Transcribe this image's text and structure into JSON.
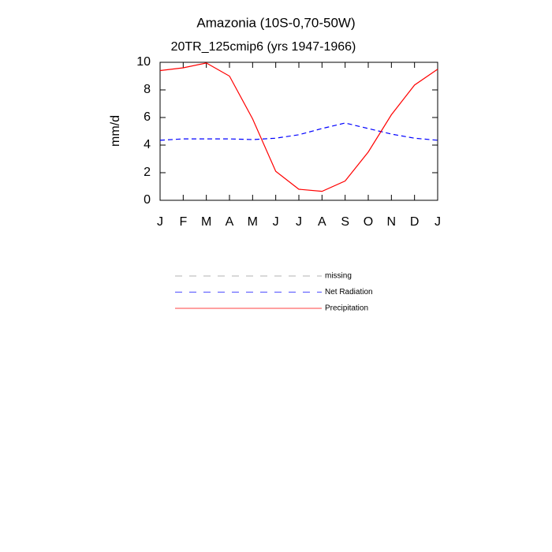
{
  "chart_data": {
    "type": "line",
    "title": "Amazonia (10S-0,70-50W)",
    "subtitle": "20TR_125cmip6 (yrs 1947-1966)",
    "y_label": "mm/d",
    "categories": [
      "J",
      "F",
      "M",
      "A",
      "M",
      "J",
      "J",
      "A",
      "S",
      "O",
      "N",
      "D",
      "J"
    ],
    "series": [
      {
        "name": "missing",
        "color": "#999999",
        "dash": true,
        "values": [
          null,
          null,
          null,
          null,
          null,
          null,
          null,
          null,
          null,
          null,
          null,
          null,
          null
        ]
      },
      {
        "name": "Net Radiation",
        "color": "#0000ff",
        "dash": true,
        "values": [
          4.35,
          4.45,
          4.45,
          4.45,
          4.4,
          4.5,
          4.75,
          5.2,
          5.6,
          5.2,
          4.8,
          4.5,
          4.35
        ]
      },
      {
        "name": "Precipitation",
        "color": "#ff0000",
        "dash": false,
        "values": [
          9.4,
          9.6,
          9.95,
          9.0,
          5.9,
          2.1,
          0.8,
          0.65,
          1.4,
          3.5,
          6.2,
          8.35,
          9.5
        ]
      }
    ],
    "ylim": [
      0,
      10
    ],
    "yticks": [
      0,
      2,
      4,
      6,
      8,
      10
    ]
  }
}
